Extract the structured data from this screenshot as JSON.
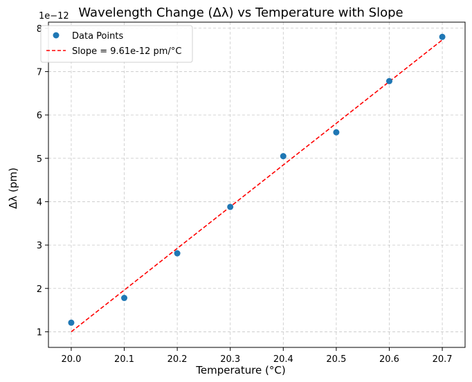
{
  "chart_data": {
    "type": "scatter",
    "title": "Wavelength Change (Δλ) vs Temperature with Slope",
    "xlabel": "Temperature (°C)",
    "ylabel": "Δλ (pm)",
    "y_offset_label": "1e−12",
    "xlim": [
      19.957,
      20.743
    ],
    "ylim": [
      0.64,
      8.14
    ],
    "x_ticks": [
      20.0,
      20.1,
      20.2,
      20.3,
      20.4,
      20.5,
      20.6,
      20.7
    ],
    "x_tick_labels": [
      "20.0",
      "20.1",
      "20.2",
      "20.3",
      "20.4",
      "20.5",
      "20.6",
      "20.7"
    ],
    "y_ticks": [
      1,
      2,
      3,
      4,
      5,
      6,
      7,
      8
    ],
    "y_tick_labels": [
      "1",
      "2",
      "3",
      "4",
      "5",
      "6",
      "7",
      "8"
    ],
    "grid": true,
    "legend_position": "top-left",
    "series": [
      {
        "name": "Data Points",
        "kind": "scatter",
        "color": "#1f77b4",
        "x": [
          20.0,
          20.1,
          20.2,
          20.3,
          20.4,
          20.5,
          20.6,
          20.7
        ],
        "y": [
          1.21,
          1.78,
          2.81,
          3.88,
          5.05,
          5.6,
          6.78,
          7.8
        ]
      },
      {
        "name": "Slope = 9.61e-12 pm/°C",
        "kind": "line",
        "style": "dashed",
        "color": "#ff0000",
        "x": [
          20.0,
          20.7
        ],
        "y": [
          1.0,
          7.73
        ]
      }
    ]
  }
}
